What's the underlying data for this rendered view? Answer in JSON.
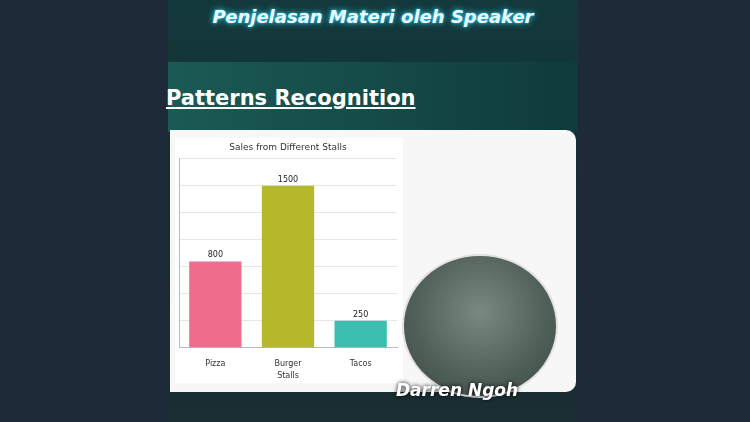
{
  "header": "Penjelasan Materi oleh Speaker",
  "slide_title": "Patterns Recognition",
  "speaker": "Darren Ngoh",
  "chart_data": {
    "type": "bar",
    "title": "Sales from Different Stalls",
    "x_label": "Stalls",
    "categories": [
      "Pizza",
      "Burger",
      "Tacos"
    ],
    "values": [
      800,
      1500,
      250
    ],
    "colors": [
      "#f06c8c",
      "#b5b82a",
      "#3cbfb0"
    ],
    "ylim": [
      0,
      1750
    ],
    "yticks": [
      0,
      250,
      500,
      750,
      1000,
      1250,
      1500,
      1750
    ],
    "grid": true,
    "data_labels": true,
    "tick_labels": "x"
  }
}
